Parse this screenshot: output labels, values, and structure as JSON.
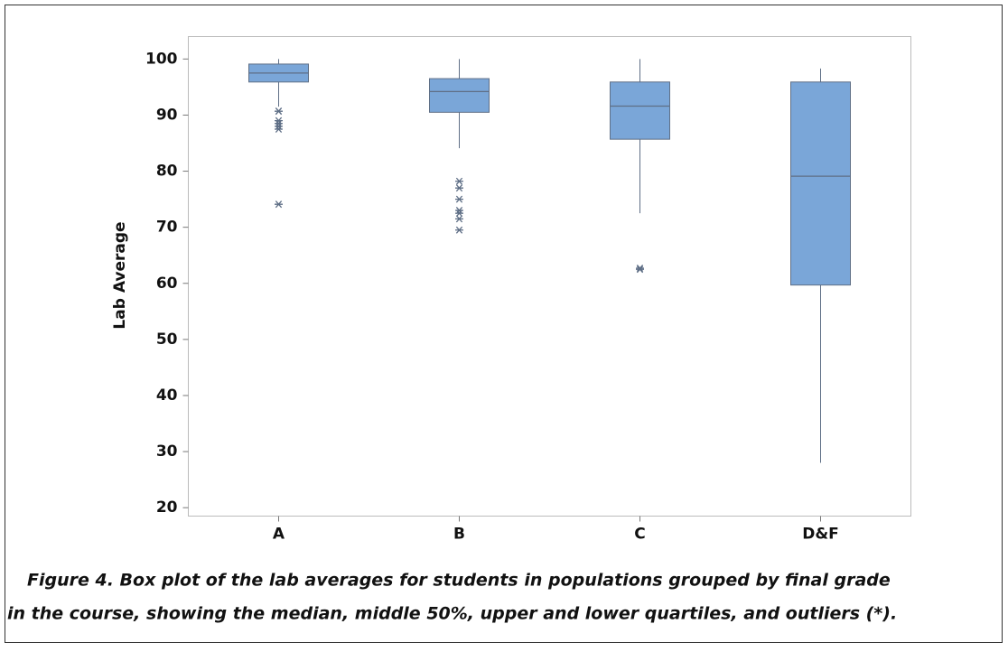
{
  "chart_data": {
    "type": "box",
    "y_label": "Lab Average",
    "categories": [
      "A",
      "B",
      "C",
      "D&F"
    ],
    "color": "#7aa6d8",
    "line_color": "#5f6f86",
    "whisker_low": [
      91.5,
      84.1,
      72.5,
      28
    ],
    "q1": [
      95.9,
      90.5,
      85.7,
      59.7
    ],
    "median": [
      97.5,
      94.2,
      91.6,
      79.1
    ],
    "q3": [
      99.1,
      96.5,
      95.9,
      95.9
    ],
    "whisker_high": [
      100,
      100,
      100,
      98.3
    ],
    "outliers": [
      [
        90.7,
        90.7,
        89,
        88.5,
        88,
        87.5,
        74.1
      ],
      [
        78.2,
        77,
        75,
        73,
        72.5,
        71.5,
        69.5
      ],
      [
        62.7,
        62.5
      ],
      []
    ],
    "ylim": [
      18.5,
      104
    ],
    "yticks": [
      20,
      30,
      40,
      50,
      60,
      70,
      80,
      90,
      100
    ],
    "grid": false,
    "caption": [
      "Figure 4. Box plot of the lab averages for students in populations grouped by final grade",
      "in the course, showing the median, middle 50%, upper and lower quartiles, and outliers (*)."
    ]
  }
}
